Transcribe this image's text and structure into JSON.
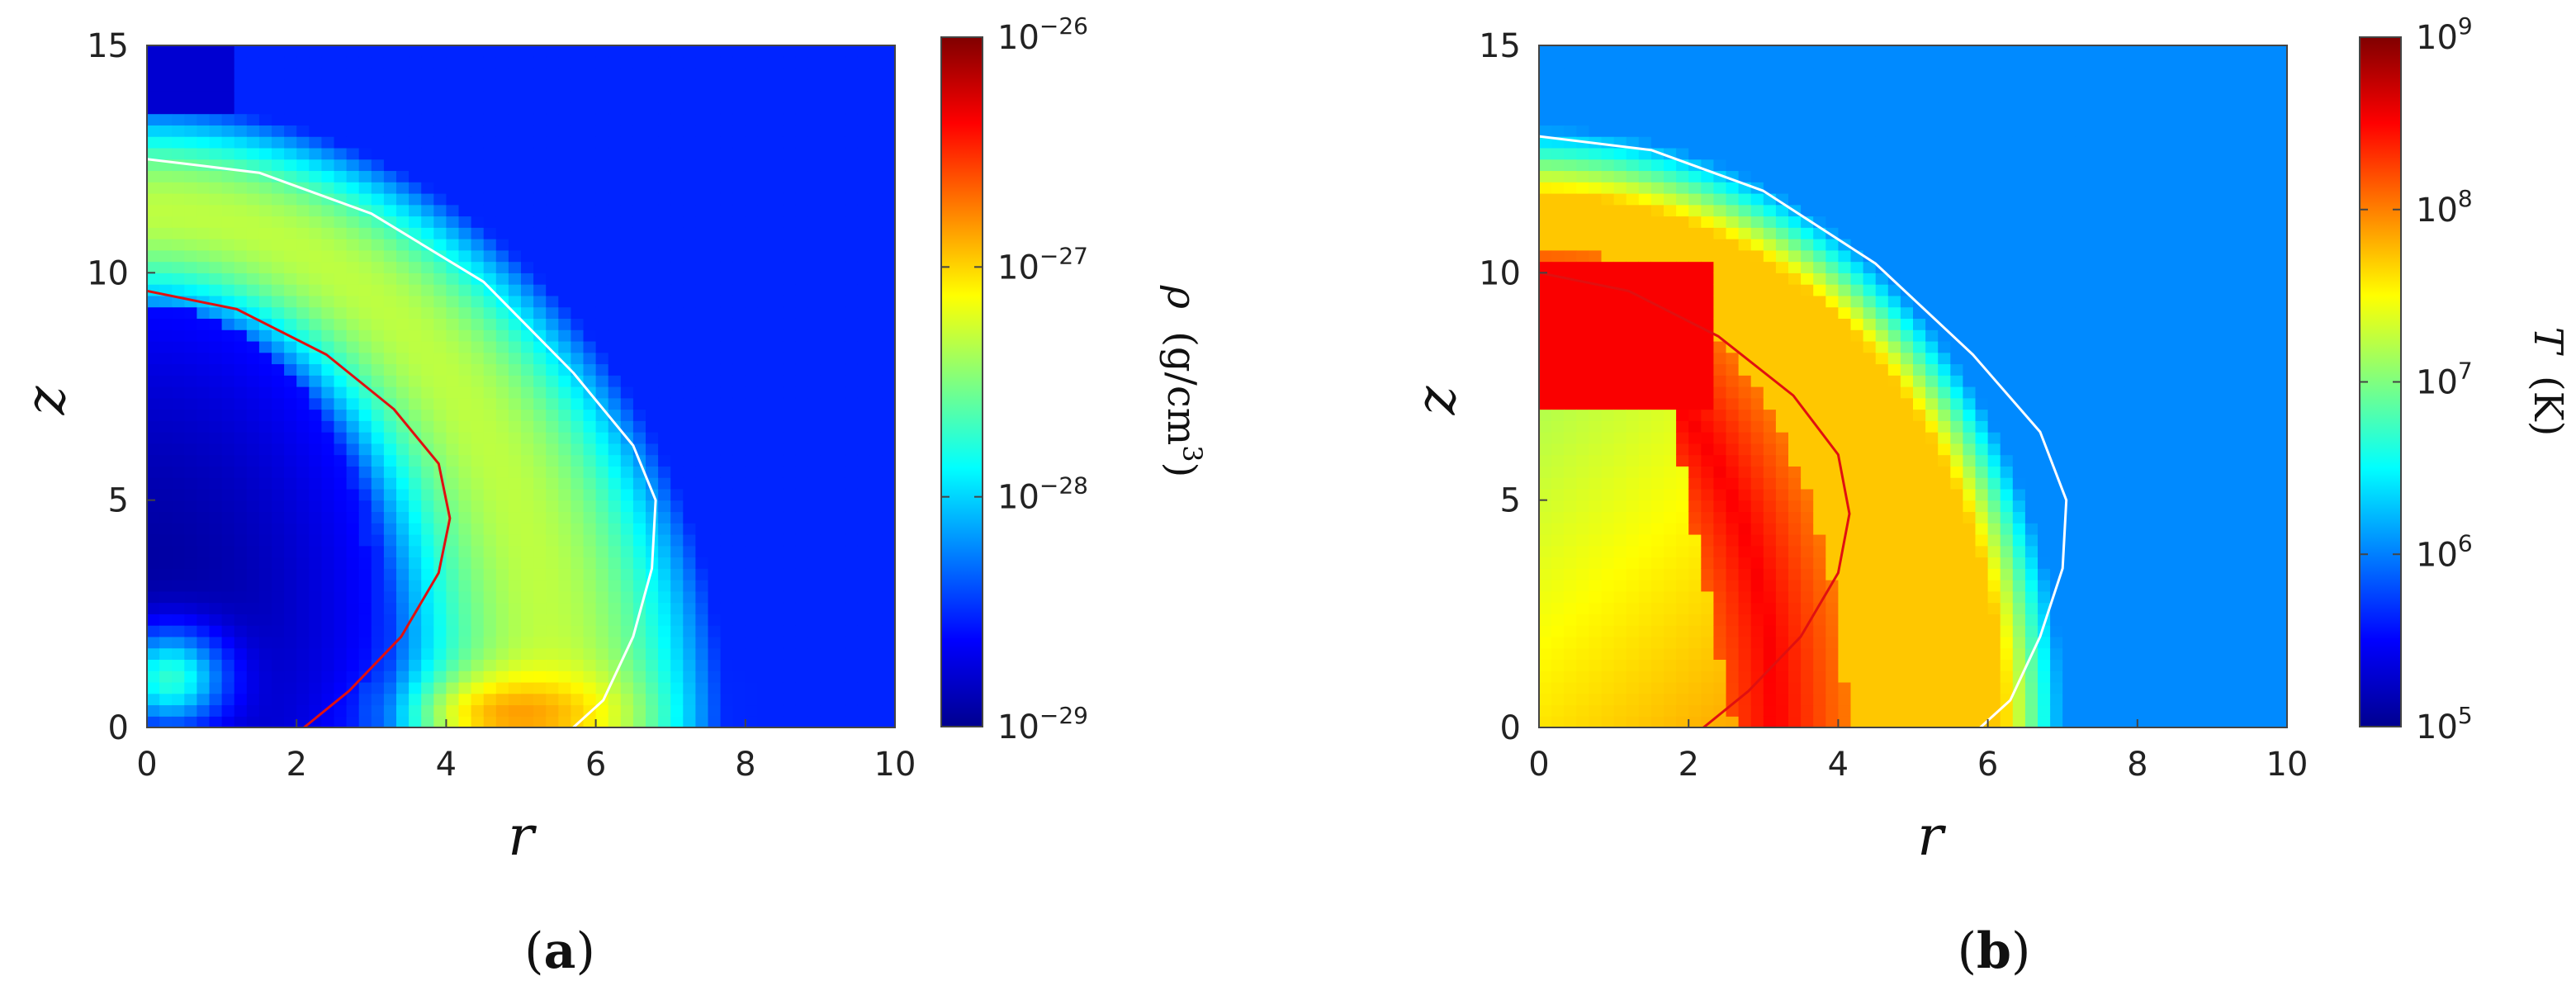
{
  "chart_data": [
    {
      "type": "heatmap",
      "panel_label": {
        "open": "(",
        "letter": "a",
        "close": ")"
      },
      "xlabel": "r",
      "ylabel": "z",
      "xlim": [
        0,
        10
      ],
      "ylim": [
        0,
        15
      ],
      "xticks": [
        "0",
        "2",
        "4",
        "6",
        "8",
        "10"
      ],
      "yticks": [
        "0",
        "5",
        "10",
        "15"
      ],
      "colorbar": {
        "label_symbol": "ρ",
        "label_unit_open": "(g/cm",
        "label_unit_sup": "3",
        "label_unit_close": ")",
        "scale": "log",
        "range": [
          1e-29,
          1e-26
        ],
        "ticks": [
          {
            "base": "10",
            "exp": "−26"
          },
          {
            "base": "10",
            "exp": "−27"
          },
          {
            "base": "10",
            "exp": "−28"
          },
          {
            "base": "10",
            "exp": "−29"
          }
        ]
      },
      "field": {
        "background": 0.16,
        "shell": {
          "peak": 0.56,
          "inner_radius": [
            4.1,
            9.6
          ],
          "outer_radius": [
            6.8,
            12.5
          ],
          "center_z": 0.3
        },
        "cavity": {
          "value": 0.03,
          "radius_r": 3.0,
          "radius_z": 6.8
        },
        "base_hotspot": {
          "value": 0.72,
          "r": 5.0,
          "z": 0.3
        },
        "inner_base_hotspot": {
          "value": 0.42,
          "r": 0.3,
          "z": 1.1
        }
      },
      "contours": [
        {
          "color": "#ffffff",
          "points": [
            [
              0,
              12.5
            ],
            [
              1.5,
              12.2
            ],
            [
              3,
              11.3
            ],
            [
              4.5,
              9.8
            ],
            [
              5.7,
              7.8
            ],
            [
              6.5,
              6.2
            ],
            [
              6.8,
              5.0
            ],
            [
              6.75,
              3.5
            ],
            [
              6.5,
              2.0
            ],
            [
              6.1,
              0.6
            ],
            [
              5.7,
              0.0
            ]
          ]
        },
        {
          "color": "#e01010",
          "points": [
            [
              0,
              9.6
            ],
            [
              1.2,
              9.2
            ],
            [
              2.4,
              8.2
            ],
            [
              3.3,
              7.0
            ],
            [
              3.9,
              5.8
            ],
            [
              4.05,
              4.6
            ],
            [
              3.9,
              3.4
            ],
            [
              3.4,
              2.0
            ],
            [
              2.7,
              0.8
            ],
            [
              2.1,
              0.0
            ]
          ]
        }
      ]
    },
    {
      "type": "heatmap",
      "panel_label": {
        "open": "(",
        "letter": "b",
        "close": ")"
      },
      "xlabel": "r",
      "ylabel": "z",
      "xlim": [
        0,
        10
      ],
      "ylim": [
        0,
        15
      ],
      "xticks": [
        "0",
        "2",
        "4",
        "6",
        "8",
        "10"
      ],
      "yticks": [
        "0",
        "5",
        "10",
        "15"
      ],
      "colorbar": {
        "label_symbol": "T",
        "label_unit_open": "(K)",
        "label_unit_sup": "",
        "label_unit_close": "",
        "scale": "log",
        "range": [
          100000.0,
          1000000000.0
        ],
        "ticks": [
          {
            "base": "10",
            "exp": "9"
          },
          {
            "base": "10",
            "exp": "8"
          },
          {
            "base": "10",
            "exp": "7"
          },
          {
            "base": "10",
            "exp": "6"
          },
          {
            "base": "10",
            "exp": "5"
          }
        ]
      },
      "field": {
        "background": 0.26,
        "shell": {
          "peak": 0.68,
          "inner_radius": [
            4.2,
            10.0
          ],
          "outer_radius": [
            7.0,
            13.0
          ],
          "center_z": 0.2
        },
        "hot_band": {
          "value": 0.88,
          "inner_radius": [
            2.2,
            7.2
          ],
          "outer_radius": [
            3.0,
            10.0
          ]
        },
        "core": {
          "value": 0.55,
          "r_max": 2.6,
          "z_max": 7.0
        }
      },
      "contours": [
        {
          "color": "#ffffff",
          "points": [
            [
              0,
              13.0
            ],
            [
              1.5,
              12.7
            ],
            [
              3,
              11.8
            ],
            [
              4.5,
              10.2
            ],
            [
              5.8,
              8.2
            ],
            [
              6.7,
              6.5
            ],
            [
              7.05,
              5.0
            ],
            [
              7.0,
              3.5
            ],
            [
              6.7,
              2.0
            ],
            [
              6.3,
              0.6
            ],
            [
              5.9,
              0.0
            ]
          ]
        },
        {
          "color": "#e01010",
          "points": [
            [
              0,
              10.0
            ],
            [
              1.2,
              9.6
            ],
            [
              2.4,
              8.6
            ],
            [
              3.4,
              7.3
            ],
            [
              4.0,
              6.0
            ],
            [
              4.15,
              4.7
            ],
            [
              4.0,
              3.4
            ],
            [
              3.5,
              2.0
            ],
            [
              2.8,
              0.8
            ],
            [
              2.2,
              0.0
            ]
          ]
        }
      ]
    }
  ]
}
